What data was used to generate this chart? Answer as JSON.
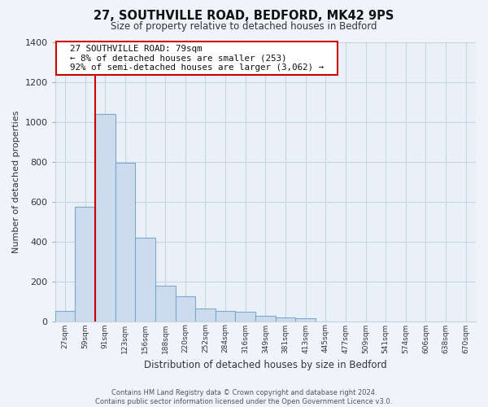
{
  "title": "27, SOUTHVILLE ROAD, BEDFORD, MK42 9PS",
  "subtitle": "Size of property relative to detached houses in Bedford",
  "xlabel": "Distribution of detached houses by size in Bedford",
  "ylabel": "Number of detached properties",
  "bin_labels": [
    "27sqm",
    "59sqm",
    "91sqm",
    "123sqm",
    "156sqm",
    "188sqm",
    "220sqm",
    "252sqm",
    "284sqm",
    "316sqm",
    "349sqm",
    "381sqm",
    "413sqm",
    "445sqm",
    "477sqm",
    "509sqm",
    "541sqm",
    "574sqm",
    "606sqm",
    "638sqm",
    "670sqm"
  ],
  "bar_values": [
    50,
    575,
    1040,
    795,
    420,
    178,
    125,
    63,
    50,
    48,
    25,
    18,
    13,
    0,
    0,
    0,
    0,
    0,
    0,
    0,
    0
  ],
  "bar_color": "#ccdcee",
  "bar_edge_color": "#7aaac8",
  "property_line_color": "#cc0000",
  "property_line_bin_index": 1.5,
  "ylim": [
    0,
    1400
  ],
  "yticks": [
    0,
    200,
    400,
    600,
    800,
    1000,
    1200,
    1400
  ],
  "annotation_title": "27 SOUTHVILLE ROAD: 79sqm",
  "annotation_line1": "← 8% of detached houses are smaller (253)",
  "annotation_line2": "92% of semi-detached houses are larger (3,062) →",
  "annotation_box_facecolor": "#ffffff",
  "annotation_box_edgecolor": "#cc0000",
  "footer_line1": "Contains HM Land Registry data © Crown copyright and database right 2024.",
  "footer_line2": "Contains public sector information licensed under the Open Government Licence v3.0.",
  "background_color": "#f0f4fa",
  "plot_bg_color": "#eaf0f8",
  "grid_color": "#c8d4e4"
}
